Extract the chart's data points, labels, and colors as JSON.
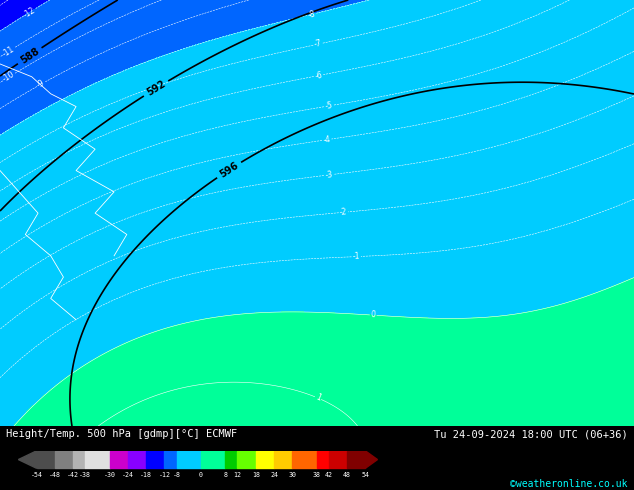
{
  "title_left": "Height/Temp. 500 hPa [gdmp][°C] ECMWF",
  "title_right": "Tu 24-09-2024 18:00 UTC (06+36)",
  "credit": "©weatheronline.co.uk",
  "colorbar_values": [
    -54,
    -48,
    -42,
    -38,
    -30,
    -24,
    -18,
    -12,
    -8,
    0,
    8,
    12,
    18,
    24,
    30,
    38,
    42,
    48,
    54
  ],
  "colorbar_colors": [
    "#4d4d4d",
    "#808080",
    "#b3b3b3",
    "#e0e0e0",
    "#cc00cc",
    "#8800ff",
    "#0000ff",
    "#0066ff",
    "#00ccff",
    "#00ff99",
    "#00cc00",
    "#66ff00",
    "#ffff00",
    "#ffcc00",
    "#ff6600",
    "#ff0000",
    "#cc0000",
    "#800000"
  ],
  "bg_color": "#00aa00",
  "fig_width": 6.34,
  "fig_height": 4.9,
  "dpi": 100
}
